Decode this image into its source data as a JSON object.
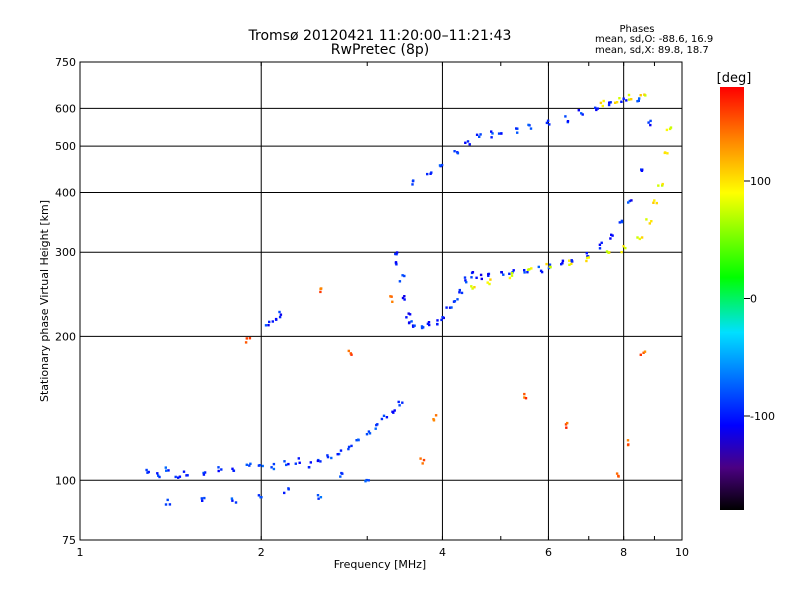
{
  "chart_data": {
    "type": "scatter",
    "title": "Tromsø 20120421 11:20:00–11:21:43",
    "subtitle": "RwPretec (8p)",
    "xlabel": "Frequency [MHz]",
    "ylabel": "Stationary phase Virtual Height [km]",
    "x_scale": "log",
    "y_scale": "log",
    "xlim": [
      1,
      10
    ],
    "ylim": [
      75,
      750
    ],
    "xticks": [
      {
        "value": 1,
        "label": "1"
      },
      {
        "value": 2,
        "label": "2"
      },
      {
        "value": 4,
        "label": "4"
      },
      {
        "value": 6,
        "label": "6"
      },
      {
        "value": 8,
        "label": "8"
      },
      {
        "value": 10,
        "label": "10"
      }
    ],
    "yticks": [
      {
        "value": 75,
        "label": "75"
      },
      {
        "value": 100,
        "label": "100"
      },
      {
        "value": 200,
        "label": "200"
      },
      {
        "value": 300,
        "label": "300"
      },
      {
        "value": 400,
        "label": "400"
      },
      {
        "value": 500,
        "label": "500"
      },
      {
        "value": 600,
        "label": "600"
      },
      {
        "value": 750,
        "label": "750"
      }
    ],
    "grid": true,
    "stats": {
      "heading": "Phases",
      "line_o": "mean, sd,O:  -88.6, 16.9",
      "line_x": "mean, sd,X:  89.8, 18.7"
    },
    "colorbar": {
      "label": "[deg]",
      "range": [
        -180,
        180
      ],
      "ticks": [
        {
          "value": 100,
          "label": "100"
        },
        {
          "value": 0,
          "label": "0"
        },
        {
          "value": -100,
          "label": "-100"
        }
      ]
    },
    "series": [
      {
        "x": [
          1.3,
          1.35,
          1.4,
          1.45,
          1.5,
          1.6,
          1.7,
          1.8,
          1.9,
          2.0,
          2.1,
          2.2,
          2.3,
          2.4,
          2.5,
          2.6,
          2.7,
          2.8,
          2.9,
          3.0,
          3.1,
          3.2,
          3.3,
          3.4
        ],
        "y": [
          104,
          103,
          105,
          102,
          103,
          104,
          106,
          105,
          107,
          108,
          107,
          109,
          110,
          108,
          111,
          112,
          115,
          118,
          120,
          125,
          130,
          135,
          140,
          145
        ],
        "phase": -90
      },
      {
        "x": [
          1.4,
          1.6,
          1.8,
          2.0,
          2.2,
          2.5,
          2.7,
          3.0
        ],
        "y": [
          90,
          92,
          91,
          93,
          95,
          92,
          103,
          100
        ],
        "phase": -85
      },
      {
        "x": [
          2.05,
          2.1,
          2.15
        ],
        "y": [
          212,
          218,
          222
        ],
        "phase": -95
      },
      {
        "x": [
          3.35,
          3.38,
          3.42,
          3.45,
          3.5,
          3.55,
          3.6,
          3.7,
          3.8,
          3.9,
          4.0,
          4.1,
          4.2,
          4.3,
          4.4,
          4.5,
          4.6,
          4.8,
          5.0,
          5.2,
          5.5,
          5.8,
          6.0,
          6.3,
          6.6,
          7.0,
          7.3,
          7.6,
          7.9,
          8.2,
          8.5,
          8.8
        ],
        "y": [
          300,
          285,
          265,
          240,
          222,
          215,
          212,
          210,
          212,
          215,
          220,
          228,
          238,
          248,
          262,
          270,
          268,
          270,
          271,
          272,
          274,
          277,
          280,
          284,
          290,
          298,
          310,
          325,
          345,
          380,
          450,
          560
        ],
        "phase": -95
      },
      {
        "x": [
          3.6,
          3.8,
          4.0,
          4.2,
          4.4,
          4.6,
          4.8,
          5.0,
          5.3,
          5.6,
          6.0,
          6.4,
          6.8,
          7.2,
          7.6,
          8.0,
          8.4
        ],
        "y": [
          420,
          440,
          460,
          490,
          510,
          525,
          530,
          535,
          540,
          550,
          560,
          570,
          590,
          600,
          615,
          625,
          630
        ],
        "phase": -92
      },
      {
        "x": [
          4.5,
          4.8,
          5.2,
          5.6,
          6.0,
          6.5,
          7.0,
          7.5,
          8.0,
          8.5,
          8.8,
          9.0,
          9.2,
          9.4,
          9.5
        ],
        "y": [
          252,
          260,
          268,
          275,
          280,
          285,
          290,
          297,
          305,
          325,
          350,
          380,
          420,
          480,
          540
        ],
        "phase": 90
      },
      {
        "x": [
          7.4,
          7.8,
          8.2,
          8.6
        ],
        "y": [
          615,
          625,
          632,
          640
        ],
        "phase": 95
      },
      {
        "x": [
          1.9,
          2.5,
          2.8,
          3.3,
          3.7,
          3.9,
          5.5,
          6.4,
          7.8,
          8.2,
          8.6
        ],
        "y": [
          196,
          250,
          185,
          240,
          110,
          135,
          150,
          130,
          102,
          120,
          185
        ],
        "phase": 150
      }
    ]
  }
}
